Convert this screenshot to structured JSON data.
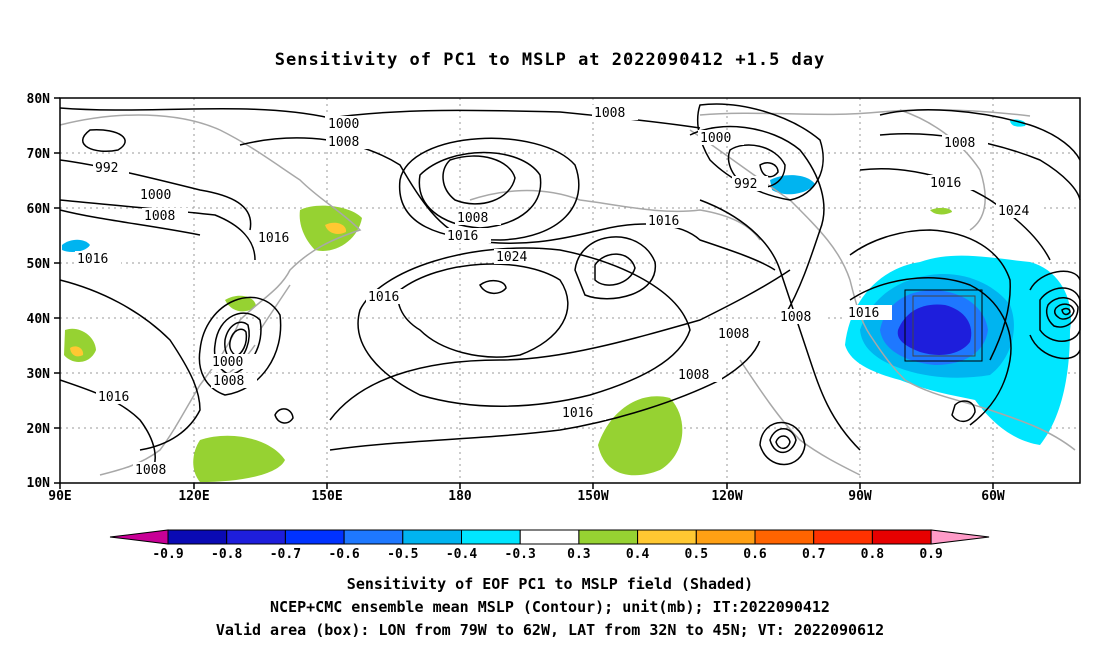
{
  "title": "Sensitivity of PC1 to MSLP at 2022090412 +1.5 day",
  "map": {
    "lat_ticks": [
      "80N",
      "70N",
      "60N",
      "50N",
      "40N",
      "30N",
      "20N",
      "10N"
    ],
    "lon_ticks": [
      "90E",
      "120E",
      "150E",
      "180",
      "150W",
      "120W",
      "90W",
      "60W"
    ],
    "contour_labels": [
      {
        "text": "1000"
      },
      {
        "text": "1008"
      },
      {
        "text": "992"
      },
      {
        "text": "1000"
      },
      {
        "text": "1008"
      },
      {
        "text": "1016"
      },
      {
        "text": "1016"
      },
      {
        "text": "1008"
      },
      {
        "text": "1016"
      },
      {
        "text": "1024"
      },
      {
        "text": "1016"
      },
      {
        "text": "1008"
      },
      {
        "text": "1000"
      },
      {
        "text": "992"
      },
      {
        "text": "1016"
      },
      {
        "text": "1024"
      },
      {
        "text": "1008"
      },
      {
        "text": "1016"
      },
      {
        "text": "1008"
      },
      {
        "text": "1008"
      },
      {
        "text": "1016"
      },
      {
        "text": "1008"
      },
      {
        "text": "1016"
      },
      {
        "text": "1000"
      },
      {
        "text": "1008"
      },
      {
        "text": "1016"
      },
      {
        "text": "1008"
      }
    ],
    "valid_box": {
      "lon_from": "79W",
      "lon_to": "62W",
      "lat_from": "32N",
      "lat_to": "45N"
    }
  },
  "colorbar": {
    "labels": [
      "-0.9",
      "-0.8",
      "-0.7",
      "-0.6",
      "-0.5",
      "-0.4",
      "-0.3",
      "0.3",
      "0.4",
      "0.5",
      "0.6",
      "0.7",
      "0.8",
      "0.9"
    ],
    "colors": [
      "#0a0ab4",
      "#1e1edc",
      "#0032ff",
      "#1e78ff",
      "#00b4f0",
      "#00e6ff",
      "#ffffff",
      "#96d232",
      "#ffc832",
      "#ffa014",
      "#ff6400",
      "#ff3200",
      "#e60000"
    ],
    "left_arrow_color": "#c80096",
    "right_arrow_color": "#ff9bc8"
  },
  "captions": [
    "Sensitivity of EOF PC1 to MSLP field (Shaded)",
    "NCEP+CMC ensemble mean MSLP (Contour); unit(mb); IT:2022090412",
    "Valid area (box): LON from 79W to 62W, LAT from 32N to 45N; VT: 2022090612"
  ]
}
